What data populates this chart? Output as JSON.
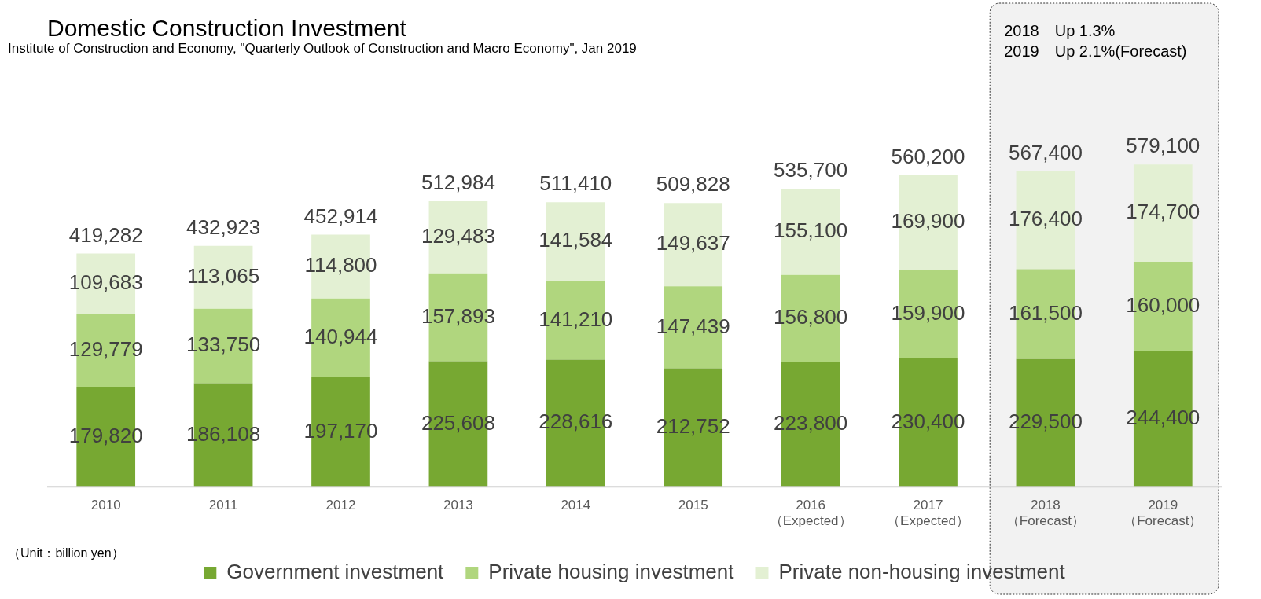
{
  "chart_data": {
    "type": "bar",
    "stacked": true,
    "title": "Domestic Construction Investment",
    "categories": [
      "2010",
      "2011",
      "2012",
      "2013",
      "2014",
      "2015",
      "2016\n（Expected）",
      "2017\n（Expected）",
      "2018\n（Forecast）",
      "2019\n（Forecast）"
    ],
    "series": [
      {
        "name": "Government investment",
        "color": "#77a832",
        "values": [
          179820,
          186108,
          197170,
          225608,
          228616,
          212752,
          223800,
          230400,
          229500,
          244400
        ],
        "value_labels": [
          "179,820",
          "186,108",
          "197,170",
          "225,608",
          "228,616",
          "212,752",
          "223,800",
          "230,400",
          "229,500",
          "244,400"
        ]
      },
      {
        "name": "Private housing investment",
        "color": "#b0d67e",
        "values": [
          129779,
          133750,
          140944,
          157893,
          141210,
          147439,
          156800,
          159900,
          161500,
          160000
        ],
        "value_labels": [
          "129,779",
          "133,750",
          "140,944",
          "157,893",
          "141,210",
          "147,439",
          "156,800",
          "159,900",
          "161,500",
          "160,000"
        ]
      },
      {
        "name": "Private non-housing investment",
        "color": "#e3f0d3",
        "values": [
          109683,
          113065,
          114800,
          129483,
          141584,
          149637,
          155100,
          169900,
          176400,
          174700
        ],
        "value_labels": [
          "109,683",
          "113,065",
          "114,800",
          "129,483",
          "141,584",
          "149,637",
          "155,100",
          "169,900",
          "176,400",
          "174,700"
        ]
      }
    ],
    "totals": [
      "419,282",
      "432,923",
      "452,914",
      "512,984",
      "511,410",
      "509,828",
      "535,700",
      "560,200",
      "567,400",
      "579,100"
    ],
    "legend": "bottom",
    "bands": [
      {
        "axis": "x",
        "from": "2018\n（Forecast）",
        "to": "2019\n（Forecast）",
        "color": "#f2f2f2"
      }
    ],
    "annotations": [
      "Institute of Construction and Economy, \"Quarterly Outlook of Construction and Macro Economy\", Jan 2019",
      "2018　Up 1.3%",
      "2019　Up 2.1%(Forecast)",
      "（Unit：billion yen）"
    ]
  }
}
